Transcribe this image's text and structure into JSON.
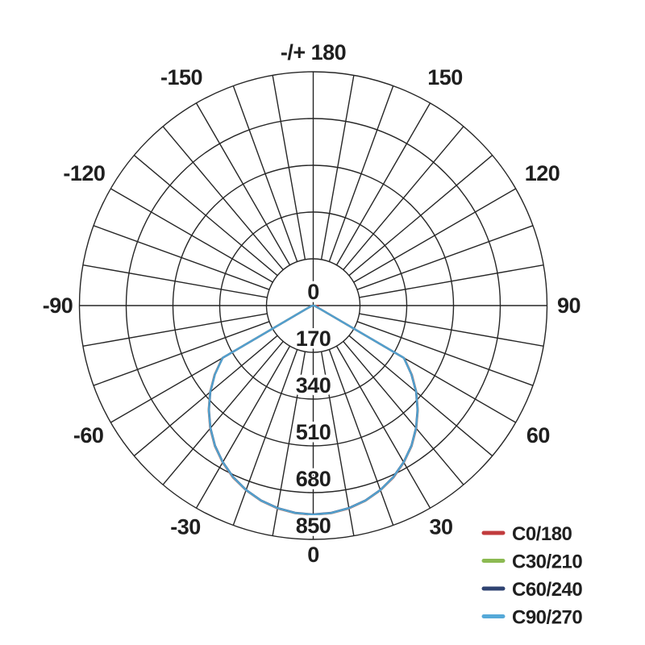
{
  "chart_data": {
    "type": "polar-photometric",
    "title": "",
    "description": "Luminous intensity distribution polar curve, lobe pointing to 0 deg (down)",
    "angle_unit": "deg",
    "angle_tick_step": 10,
    "angle_labels": [
      {
        "angle": 180,
        "text": "-/+ 180"
      },
      {
        "angle": 150,
        "text": "150"
      },
      {
        "angle": 120,
        "text": "120"
      },
      {
        "angle": 90,
        "text": "90"
      },
      {
        "angle": 60,
        "text": "60"
      },
      {
        "angle": 30,
        "text": "30"
      },
      {
        "angle": 0,
        "text": "0"
      },
      {
        "angle": -30,
        "text": "-30"
      },
      {
        "angle": -60,
        "text": "-60"
      },
      {
        "angle": -90,
        "text": "-90"
      },
      {
        "angle": -120,
        "text": "-120"
      },
      {
        "angle": -150,
        "text": "-150"
      }
    ],
    "radial_ticks": [
      0,
      170,
      340,
      510,
      680,
      850
    ],
    "radial_max": 850,
    "grid_color": "#262626",
    "x": [
      -90,
      -85,
      -80,
      -75,
      -70,
      -65,
      -60,
      -55,
      -50,
      -45,
      -40,
      -35,
      -30,
      -25,
      -20,
      -15,
      -10,
      -5,
      0,
      5,
      10,
      15,
      20,
      25,
      30,
      35,
      40,
      45,
      50,
      55,
      60,
      65,
      70,
      75,
      80,
      85,
      90
    ],
    "series": [
      {
        "name": "C0/180",
        "color": "#c13b3d",
        "values": [
          8,
          6,
          5,
          7,
          12,
          25,
          382,
          438,
          490,
          538,
          583,
          624,
          659,
          690,
          715,
          735,
          749,
          758,
          761,
          758,
          749,
          735,
          715,
          690,
          659,
          624,
          583,
          538,
          490,
          438,
          382,
          25,
          14,
          8,
          10,
          14,
          20
        ]
      },
      {
        "name": "C30/210",
        "color": "#8cba52",
        "values": [
          4,
          3,
          4,
          6,
          12,
          25,
          381,
          437,
          489,
          537,
          582,
          623,
          658,
          689,
          714,
          734,
          748,
          757,
          760,
          757,
          748,
          734,
          714,
          689,
          658,
          623,
          582,
          537,
          489,
          436,
          381,
          24,
          12,
          7,
          6,
          6,
          10
        ]
      },
      {
        "name": "C60/240",
        "color": "#2e4271",
        "values": [
          3,
          2,
          3,
          5,
          11,
          24,
          380,
          436,
          488,
          536,
          581,
          622,
          657,
          688,
          713,
          733,
          747,
          756,
          759,
          756,
          747,
          733,
          713,
          688,
          657,
          622,
          581,
          536,
          488,
          435,
          380,
          24,
          11,
          6,
          5,
          4,
          5
        ]
      },
      {
        "name": "C90/270",
        "color": "#55a9d8",
        "values": [
          0,
          2,
          4,
          6,
          12,
          25,
          380,
          436,
          489,
          537,
          582,
          623,
          658,
          689,
          714,
          734,
          748,
          757,
          760,
          757,
          748,
          734,
          714,
          689,
          658,
          623,
          582,
          537,
          489,
          436,
          380,
          25,
          12,
          6,
          4,
          2,
          0
        ]
      }
    ],
    "legend": {
      "position": "bottom-right",
      "items": [
        {
          "label": "C0/180",
          "color": "#c13b3d"
        },
        {
          "label": "C30/210",
          "color": "#8cba52"
        },
        {
          "label": "C60/240",
          "color": "#2e4271"
        },
        {
          "label": "C90/270",
          "color": "#55a9d8"
        }
      ]
    }
  }
}
